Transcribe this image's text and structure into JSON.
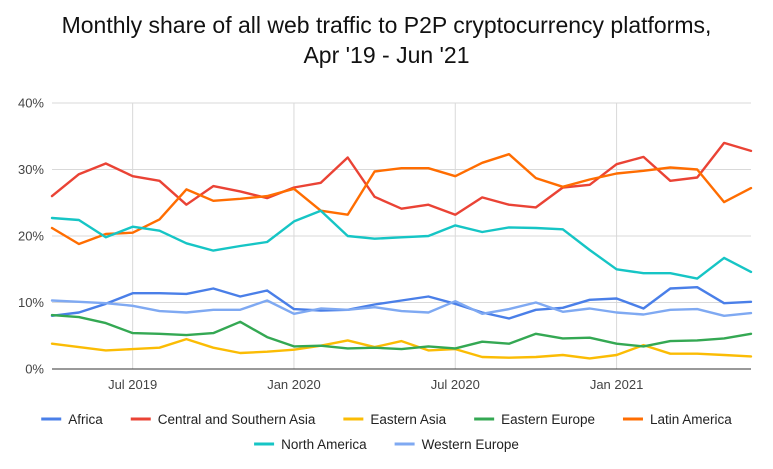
{
  "chart_data": {
    "type": "line",
    "title_line1": "Monthly share of all web traffic to P2P cryptocurrency platforms,",
    "title_line2": "Apr '19 - Jun '21",
    "xlabel": "",
    "ylabel": "",
    "ylim": [
      0,
      40
    ],
    "yticks": [
      0,
      10,
      20,
      30,
      40
    ],
    "ytick_labels": [
      "0%",
      "10%",
      "20%",
      "30%",
      "40%"
    ],
    "x": [
      "2019-04",
      "2019-05",
      "2019-06",
      "2019-07",
      "2019-08",
      "2019-09",
      "2019-10",
      "2019-11",
      "2019-12",
      "2020-01",
      "2020-02",
      "2020-03",
      "2020-04",
      "2020-05",
      "2020-06",
      "2020-07",
      "2020-08",
      "2020-09",
      "2020-10",
      "2020-11",
      "2020-12",
      "2021-01",
      "2021-02",
      "2021-03",
      "2021-04",
      "2021-05",
      "2021-06"
    ],
    "xticks": [
      {
        "index": 3,
        "label": "Jul 2019"
      },
      {
        "index": 9,
        "label": "Jan 2020"
      },
      {
        "index": 15,
        "label": "Jul 2020"
      },
      {
        "index": 21,
        "label": "Jan 2021"
      }
    ],
    "grid": true,
    "legend_position": "bottom",
    "series": [
      {
        "name": "Africa",
        "color": "#4a7fe8",
        "values": [
          8.0,
          8.5,
          9.8,
          11.4,
          11.4,
          11.3,
          12.1,
          10.9,
          11.8,
          9.0,
          8.8,
          8.9,
          9.7,
          10.3,
          10.9,
          9.8,
          8.5,
          7.6,
          8.9,
          9.2,
          10.4,
          10.6,
          9.1,
          12.1,
          12.3,
          9.9,
          10.1
        ]
      },
      {
        "name": "Central and Southern Asia",
        "color": "#ea4335",
        "values": [
          26.0,
          29.3,
          30.9,
          29.0,
          28.3,
          24.7,
          27.5,
          26.7,
          25.7,
          27.3,
          28.0,
          31.8,
          25.9,
          24.1,
          24.7,
          23.2,
          25.8,
          24.7,
          24.3,
          27.3,
          27.7,
          30.8,
          31.9,
          28.3,
          28.8,
          34.0,
          32.8
        ]
      },
      {
        "name": "Eastern Asia",
        "color": "#fbbc04",
        "values": [
          3.8,
          3.3,
          2.8,
          3.0,
          3.2,
          4.5,
          3.2,
          2.4,
          2.6,
          2.9,
          3.5,
          4.3,
          3.3,
          4.2,
          2.8,
          3.0,
          1.8,
          1.7,
          1.8,
          2.1,
          1.6,
          2.1,
          3.6,
          2.3,
          2.3,
          2.1,
          1.9
        ]
      },
      {
        "name": "Eastern Europe",
        "color": "#34a853",
        "values": [
          8.1,
          7.8,
          6.9,
          5.4,
          5.3,
          5.1,
          5.4,
          7.1,
          4.8,
          3.4,
          3.5,
          3.1,
          3.2,
          3.0,
          3.4,
          3.1,
          4.1,
          3.8,
          5.3,
          4.6,
          4.7,
          3.8,
          3.4,
          4.2,
          4.3,
          4.6,
          5.3
        ]
      },
      {
        "name": "Latin America",
        "color": "#ff6d01",
        "values": [
          21.2,
          18.8,
          20.3,
          20.5,
          22.5,
          27.0,
          25.3,
          25.6,
          26.0,
          27.1,
          23.8,
          23.2,
          29.7,
          30.2,
          30.2,
          29.0,
          31.0,
          32.3,
          28.7,
          27.4,
          28.5,
          29.4,
          29.8,
          30.3,
          30.0,
          25.1,
          27.2
        ]
      },
      {
        "name": "North America",
        "color": "#16c5c5",
        "values": [
          22.7,
          22.4,
          19.8,
          21.4,
          20.8,
          18.9,
          17.8,
          18.5,
          19.1,
          22.2,
          23.8,
          20.0,
          19.6,
          19.8,
          20.0,
          21.6,
          20.6,
          21.3,
          21.2,
          21.0,
          17.9,
          15.0,
          14.4,
          14.4,
          13.6,
          16.7,
          14.6
        ]
      },
      {
        "name": "Western Europe",
        "color": "#7fa9f2",
        "values": [
          10.3,
          10.1,
          9.9,
          9.5,
          8.7,
          8.5,
          8.9,
          8.9,
          10.3,
          8.3,
          9.1,
          8.9,
          9.3,
          8.7,
          8.5,
          10.2,
          8.3,
          9.0,
          10.0,
          8.6,
          9.1,
          8.5,
          8.2,
          8.9,
          9.0,
          8.0,
          8.4
        ]
      }
    ]
  }
}
